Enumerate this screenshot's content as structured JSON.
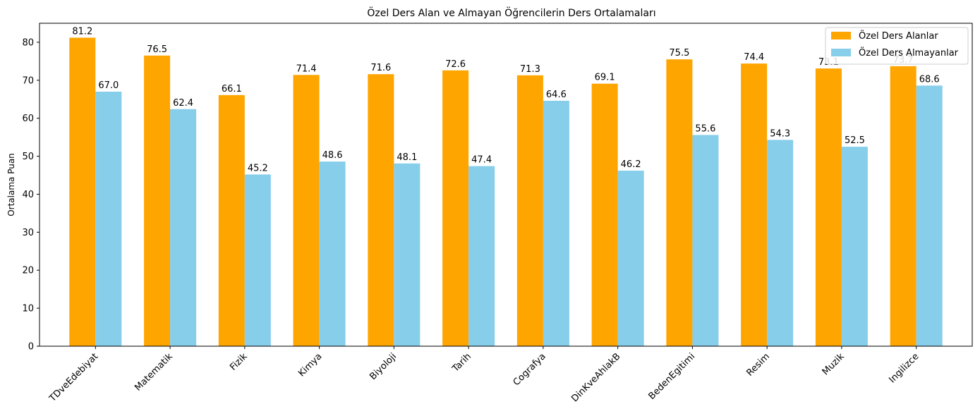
{
  "chart_data": {
    "type": "bar",
    "title": "Özel Ders Alan ve Almayan Öğrencilerin Ders Ortalamaları",
    "xlabel": "",
    "ylabel": "Ortalama Puan",
    "ylim": [
      0,
      85
    ],
    "yticks": [
      0,
      10,
      20,
      30,
      40,
      50,
      60,
      70,
      80
    ],
    "grid": false,
    "legend_position": "top-right",
    "categories": [
      "TDveEdebiyat",
      "Matematik",
      "Fizik",
      "Kimya",
      "Biyoloji",
      "Tarih",
      "Cografya",
      "DinKveAhlakB",
      "BedenEgitimi",
      "Resim",
      "Muzik",
      "Ingilizce"
    ],
    "series": [
      {
        "name": "Özel Ders Alanlar",
        "color": "#FFA500",
        "values": [
          81.2,
          76.5,
          66.1,
          71.4,
          71.6,
          72.6,
          71.3,
          69.1,
          75.5,
          74.4,
          73.1,
          73.7
        ]
      },
      {
        "name": "Özel Ders Almayanlar",
        "color": "#87CEEB",
        "values": [
          67.0,
          62.4,
          45.2,
          48.6,
          48.1,
          47.4,
          64.6,
          46.2,
          55.6,
          54.3,
          52.5,
          68.6
        ]
      }
    ]
  }
}
